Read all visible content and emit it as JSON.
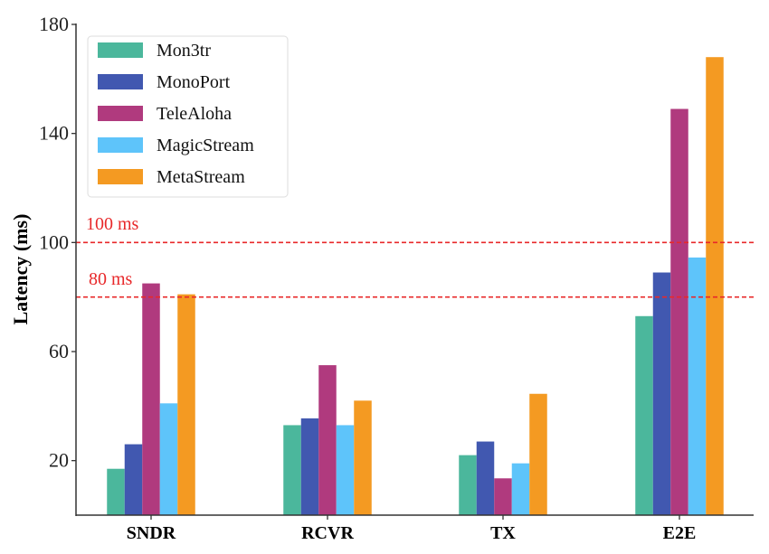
{
  "chart_data": {
    "type": "bar",
    "title": "",
    "xlabel": "",
    "ylabel": "Latency (ms)",
    "ylim": [
      0,
      180
    ],
    "yticks": [
      20,
      60,
      100,
      140,
      180
    ],
    "grid": false,
    "legend_position": "top-left",
    "categories": [
      "SNDR",
      "RCVR",
      "TX",
      "E2E"
    ],
    "series": [
      {
        "name": "Mon3tr",
        "color": "#4bb79c",
        "values": [
          17,
          33,
          22,
          73
        ]
      },
      {
        "name": "MonoPort",
        "color": "#4158b0",
        "values": [
          26,
          35.5,
          27,
          89
        ]
      },
      {
        "name": "TeleAloha",
        "color": "#b03a7e",
        "values": [
          85,
          55,
          13.5,
          149
        ]
      },
      {
        "name": "MagicStream",
        "color": "#5ec4fa",
        "values": [
          41,
          33,
          19,
          94.5
        ]
      },
      {
        "name": "MetaStream",
        "color": "#f49a22",
        "values": [
          81,
          42,
          44.5,
          168
        ]
      }
    ],
    "reference_lines": [
      {
        "value": 100,
        "label": "100 ms",
        "color": "#e8282a"
      },
      {
        "value": 80,
        "label": "80 ms",
        "color": "#e8282a"
      }
    ]
  }
}
